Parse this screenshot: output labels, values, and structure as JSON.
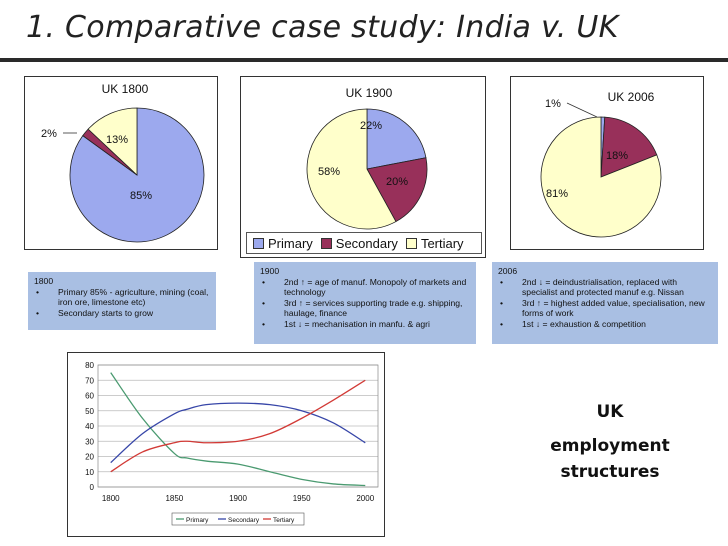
{
  "title": "1. Comparative case study: India v. UK",
  "legend": {
    "primary": "Primary",
    "secondary": "Secondary",
    "tertiary": "Tertiary"
  },
  "colors": {
    "primary": "#9ca9ee",
    "secondary": "#98305a",
    "tertiary": "#ffffcb",
    "line_primary": "#4a9a70",
    "line_secondary": "#3746a8",
    "line_tertiary": "#d23a36",
    "note_bg": "#a9bfe3"
  },
  "notes": {
    "n1800": {
      "heading": "1800",
      "items": [
        "Primary 85% - agriculture, mining (coal, iron ore, limestone etc)",
        "Secondary starts to grow"
      ]
    },
    "n1900": {
      "heading": "1900",
      "items": [
        "2nd ↑ = age of manuf. Monopoly of markets and technology",
        "3rd ↑ = services supporting trade e.g. shipping, haulage, finance",
        "1st ↓ = mechanisation in manfu. & agri"
      ]
    },
    "n2006": {
      "heading": "2006",
      "items": [
        "2nd ↓ = deindustrialisation, replaced with specialist and protected manuf e.g. Nissan",
        "3rd ↑ = highest added value, specialisation, new forms of work",
        "1st ↓ = exhaustion & competition"
      ]
    }
  },
  "side_text": {
    "line1": "UK",
    "line2": "employment",
    "line3": "structures"
  },
  "chart_data": [
    {
      "type": "pie",
      "title": "UK 1800",
      "categories": [
        "Primary",
        "Secondary",
        "Tertiary"
      ],
      "values": [
        85,
        2,
        13
      ],
      "labels": [
        "85%",
        "2%",
        "13%"
      ]
    },
    {
      "type": "pie",
      "title": "UK 1900",
      "categories": [
        "Primary",
        "Secondary",
        "Tertiary"
      ],
      "values": [
        22,
        20,
        58
      ],
      "labels": [
        "22%",
        "20%",
        "58%"
      ]
    },
    {
      "type": "pie",
      "title": "UK 2006",
      "categories": [
        "Primary",
        "Secondary",
        "Tertiary"
      ],
      "values": [
        1,
        18,
        81
      ],
      "labels": [
        "1%",
        "18%",
        "81%"
      ]
    },
    {
      "type": "line",
      "x": [
        1800,
        1825,
        1850,
        1860,
        1875,
        1900,
        1925,
        1950,
        1975,
        2000
      ],
      "xticks": [
        1800,
        1850,
        1900,
        1950,
        2000
      ],
      "yticks": [
        0,
        10,
        20,
        30,
        40,
        50,
        60,
        70,
        80
      ],
      "xlim": [
        1790,
        2010
      ],
      "ylim": [
        0,
        80
      ],
      "grid": true,
      "legend_position": "bottom",
      "series": [
        {
          "name": "Primary",
          "values": [
            75,
            45,
            22,
            19,
            17,
            15,
            10,
            5,
            2,
            1
          ]
        },
        {
          "name": "Secondary",
          "values": [
            16,
            35,
            48,
            51,
            54,
            55,
            54,
            50,
            42,
            29
          ]
        },
        {
          "name": "Tertiary",
          "values": [
            10,
            23,
            29,
            30,
            29,
            30,
            35,
            45,
            57,
            70
          ]
        }
      ]
    }
  ]
}
